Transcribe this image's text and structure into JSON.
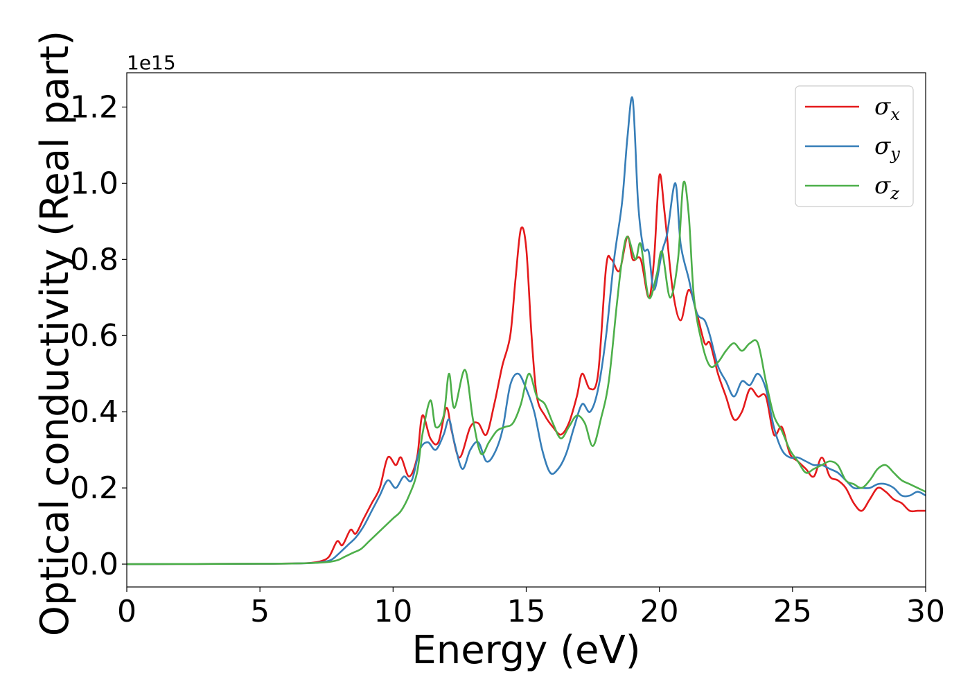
{
  "chart_data": {
    "type": "line",
    "title": "",
    "xlabel": "Energy (eV)",
    "ylabel": "Optical conductivity (Real part)",
    "y_offset_label": "1e15",
    "xlim": [
      0,
      30
    ],
    "ylim": [
      -0.06,
      1.29
    ],
    "xticks": [
      0,
      5,
      10,
      15,
      20,
      25,
      30
    ],
    "xtick_labels": [
      "0",
      "5",
      "10",
      "15",
      "20",
      "25",
      "30"
    ],
    "yticks": [
      0.0,
      0.2,
      0.4,
      0.6,
      0.8,
      1.0,
      1.2
    ],
    "ytick_labels": [
      "0.0",
      "0.2",
      "0.4",
      "0.6",
      "0.8",
      "1.0",
      "1.2"
    ],
    "grid": false,
    "legend_position": "top-right",
    "series": [
      {
        "name": "σx",
        "legend_symbol": "σ",
        "legend_sub": "x",
        "color": "#e41a1c",
        "points": [
          [
            0,
            0
          ],
          [
            5,
            0.001
          ],
          [
            6.5,
            0.002
          ],
          [
            7,
            0.004
          ],
          [
            7.3,
            0.008
          ],
          [
            7.6,
            0.02
          ],
          [
            7.9,
            0.06
          ],
          [
            8.1,
            0.05
          ],
          [
            8.4,
            0.09
          ],
          [
            8.6,
            0.08
          ],
          [
            8.9,
            0.12
          ],
          [
            9.2,
            0.16
          ],
          [
            9.5,
            0.2
          ],
          [
            9.8,
            0.28
          ],
          [
            10.1,
            0.26
          ],
          [
            10.3,
            0.28
          ],
          [
            10.6,
            0.23
          ],
          [
            10.9,
            0.28
          ],
          [
            11.1,
            0.39
          ],
          [
            11.4,
            0.33
          ],
          [
            11.7,
            0.32
          ],
          [
            12,
            0.41
          ],
          [
            12.2,
            0.35
          ],
          [
            12.5,
            0.28
          ],
          [
            12.9,
            0.36
          ],
          [
            13.2,
            0.37
          ],
          [
            13.5,
            0.34
          ],
          [
            13.8,
            0.42
          ],
          [
            14.1,
            0.52
          ],
          [
            14.4,
            0.6
          ],
          [
            14.6,
            0.75
          ],
          [
            14.8,
            0.88
          ],
          [
            15,
            0.83
          ],
          [
            15.2,
            0.6
          ],
          [
            15.4,
            0.44
          ],
          [
            15.7,
            0.39
          ],
          [
            16,
            0.36
          ],
          [
            16.3,
            0.34
          ],
          [
            16.6,
            0.37
          ],
          [
            16.9,
            0.44
          ],
          [
            17.1,
            0.5
          ],
          [
            17.4,
            0.46
          ],
          [
            17.7,
            0.5
          ],
          [
            18,
            0.78
          ],
          [
            18.2,
            0.8
          ],
          [
            18.5,
            0.77
          ],
          [
            18.8,
            0.86
          ],
          [
            19,
            0.8
          ],
          [
            19.3,
            0.8
          ],
          [
            19.6,
            0.7
          ],
          [
            19.8,
            0.8
          ],
          [
            20,
            1.02
          ],
          [
            20.2,
            0.92
          ],
          [
            20.5,
            0.72
          ],
          [
            20.8,
            0.64
          ],
          [
            21.1,
            0.72
          ],
          [
            21.4,
            0.66
          ],
          [
            21.7,
            0.58
          ],
          [
            21.9,
            0.58
          ],
          [
            22.2,
            0.5
          ],
          [
            22.5,
            0.44
          ],
          [
            22.8,
            0.38
          ],
          [
            23.1,
            0.4
          ],
          [
            23.4,
            0.46
          ],
          [
            23.7,
            0.44
          ],
          [
            24,
            0.44
          ],
          [
            24.3,
            0.34
          ],
          [
            24.6,
            0.36
          ],
          [
            24.9,
            0.29
          ],
          [
            25.2,
            0.27
          ],
          [
            25.5,
            0.25
          ],
          [
            25.8,
            0.23
          ],
          [
            26.1,
            0.28
          ],
          [
            26.4,
            0.23
          ],
          [
            26.7,
            0.22
          ],
          [
            27,
            0.2
          ],
          [
            27.3,
            0.16
          ],
          [
            27.6,
            0.14
          ],
          [
            27.9,
            0.17
          ],
          [
            28.2,
            0.2
          ],
          [
            28.5,
            0.19
          ],
          [
            28.8,
            0.17
          ],
          [
            29.1,
            0.16
          ],
          [
            29.4,
            0.14
          ],
          [
            29.7,
            0.14
          ],
          [
            30,
            0.14
          ]
        ]
      },
      {
        "name": "σy",
        "legend_symbol": "σ",
        "legend_sub": "y",
        "color": "#377eb8",
        "points": [
          [
            0,
            0
          ],
          [
            5,
            0.001
          ],
          [
            6.5,
            0.002
          ],
          [
            7,
            0.003
          ],
          [
            7.4,
            0.006
          ],
          [
            7.7,
            0.012
          ],
          [
            8,
            0.03
          ],
          [
            8.3,
            0.05
          ],
          [
            8.6,
            0.07
          ],
          [
            8.9,
            0.1
          ],
          [
            9.2,
            0.14
          ],
          [
            9.5,
            0.18
          ],
          [
            9.8,
            0.22
          ],
          [
            10.1,
            0.2
          ],
          [
            10.4,
            0.23
          ],
          [
            10.7,
            0.22
          ],
          [
            11,
            0.3
          ],
          [
            11.3,
            0.32
          ],
          [
            11.6,
            0.3
          ],
          [
            11.9,
            0.34
          ],
          [
            12.1,
            0.38
          ],
          [
            12.3,
            0.32
          ],
          [
            12.6,
            0.25
          ],
          [
            12.9,
            0.3
          ],
          [
            13.2,
            0.32
          ],
          [
            13.5,
            0.27
          ],
          [
            13.8,
            0.29
          ],
          [
            14.1,
            0.35
          ],
          [
            14.4,
            0.47
          ],
          [
            14.7,
            0.5
          ],
          [
            15,
            0.46
          ],
          [
            15.3,
            0.4
          ],
          [
            15.6,
            0.3
          ],
          [
            15.9,
            0.24
          ],
          [
            16.2,
            0.25
          ],
          [
            16.5,
            0.29
          ],
          [
            16.8,
            0.36
          ],
          [
            17.1,
            0.42
          ],
          [
            17.4,
            0.4
          ],
          [
            17.7,
            0.46
          ],
          [
            18,
            0.6
          ],
          [
            18.3,
            0.8
          ],
          [
            18.6,
            0.95
          ],
          [
            18.8,
            1.12
          ],
          [
            19,
            1.22
          ],
          [
            19.2,
            0.95
          ],
          [
            19.4,
            0.83
          ],
          [
            19.6,
            0.82
          ],
          [
            19.8,
            0.72
          ],
          [
            20.1,
            0.82
          ],
          [
            20.3,
            0.87
          ],
          [
            20.6,
            1.0
          ],
          [
            20.8,
            0.84
          ],
          [
            21.1,
            0.75
          ],
          [
            21.4,
            0.66
          ],
          [
            21.7,
            0.64
          ],
          [
            21.9,
            0.6
          ],
          [
            22.2,
            0.52
          ],
          [
            22.5,
            0.48
          ],
          [
            22.8,
            0.44
          ],
          [
            23.1,
            0.48
          ],
          [
            23.4,
            0.47
          ],
          [
            23.7,
            0.5
          ],
          [
            24,
            0.46
          ],
          [
            24.3,
            0.36
          ],
          [
            24.6,
            0.3
          ],
          [
            24.9,
            0.28
          ],
          [
            25.2,
            0.28
          ],
          [
            25.5,
            0.27
          ],
          [
            25.8,
            0.26
          ],
          [
            26.1,
            0.26
          ],
          [
            26.4,
            0.25
          ],
          [
            26.7,
            0.24
          ],
          [
            27,
            0.22
          ],
          [
            27.3,
            0.2
          ],
          [
            27.6,
            0.2
          ],
          [
            27.9,
            0.2
          ],
          [
            28.2,
            0.21
          ],
          [
            28.5,
            0.21
          ],
          [
            28.8,
            0.2
          ],
          [
            29.1,
            0.18
          ],
          [
            29.4,
            0.18
          ],
          [
            29.7,
            0.19
          ],
          [
            30,
            0.18
          ]
        ]
      },
      {
        "name": "σz",
        "legend_symbol": "σ",
        "legend_sub": "z",
        "color": "#4daf4a",
        "points": [
          [
            0,
            0
          ],
          [
            5,
            0.001
          ],
          [
            6.5,
            0.002
          ],
          [
            7,
            0.003
          ],
          [
            7.5,
            0.005
          ],
          [
            7.9,
            0.01
          ],
          [
            8.2,
            0.02
          ],
          [
            8.5,
            0.03
          ],
          [
            8.8,
            0.04
          ],
          [
            9.1,
            0.06
          ],
          [
            9.4,
            0.08
          ],
          [
            9.7,
            0.1
          ],
          [
            10,
            0.12
          ],
          [
            10.3,
            0.14
          ],
          [
            10.6,
            0.18
          ],
          [
            10.9,
            0.24
          ],
          [
            11.1,
            0.34
          ],
          [
            11.4,
            0.43
          ],
          [
            11.6,
            0.36
          ],
          [
            11.9,
            0.39
          ],
          [
            12.1,
            0.5
          ],
          [
            12.3,
            0.41
          ],
          [
            12.7,
            0.51
          ],
          [
            13,
            0.38
          ],
          [
            13.3,
            0.29
          ],
          [
            13.6,
            0.32
          ],
          [
            13.9,
            0.35
          ],
          [
            14.2,
            0.36
          ],
          [
            14.5,
            0.37
          ],
          [
            14.8,
            0.42
          ],
          [
            15.1,
            0.5
          ],
          [
            15.4,
            0.44
          ],
          [
            15.7,
            0.42
          ],
          [
            16,
            0.37
          ],
          [
            16.3,
            0.33
          ],
          [
            16.6,
            0.36
          ],
          [
            16.9,
            0.39
          ],
          [
            17.2,
            0.37
          ],
          [
            17.5,
            0.31
          ],
          [
            17.8,
            0.38
          ],
          [
            18.1,
            0.48
          ],
          [
            18.4,
            0.68
          ],
          [
            18.6,
            0.8
          ],
          [
            18.8,
            0.86
          ],
          [
            19.1,
            0.8
          ],
          [
            19.3,
            0.84
          ],
          [
            19.6,
            0.7
          ],
          [
            19.9,
            0.76
          ],
          [
            20.1,
            0.82
          ],
          [
            20.4,
            0.7
          ],
          [
            20.7,
            0.8
          ],
          [
            20.9,
            1.0
          ],
          [
            21.1,
            0.92
          ],
          [
            21.3,
            0.7
          ],
          [
            21.6,
            0.58
          ],
          [
            21.9,
            0.52
          ],
          [
            22.2,
            0.53
          ],
          [
            22.5,
            0.56
          ],
          [
            22.8,
            0.58
          ],
          [
            23.1,
            0.56
          ],
          [
            23.4,
            0.58
          ],
          [
            23.7,
            0.58
          ],
          [
            24,
            0.48
          ],
          [
            24.3,
            0.39
          ],
          [
            24.6,
            0.35
          ],
          [
            24.9,
            0.3
          ],
          [
            25.2,
            0.27
          ],
          [
            25.5,
            0.24
          ],
          [
            25.8,
            0.25
          ],
          [
            26.1,
            0.26
          ],
          [
            26.4,
            0.27
          ],
          [
            26.7,
            0.26
          ],
          [
            27,
            0.22
          ],
          [
            27.3,
            0.21
          ],
          [
            27.6,
            0.2
          ],
          [
            27.9,
            0.22
          ],
          [
            28.2,
            0.25
          ],
          [
            28.5,
            0.26
          ],
          [
            28.8,
            0.24
          ],
          [
            29.1,
            0.22
          ],
          [
            29.4,
            0.21
          ],
          [
            29.7,
            0.2
          ],
          [
            30,
            0.19
          ]
        ]
      }
    ]
  }
}
